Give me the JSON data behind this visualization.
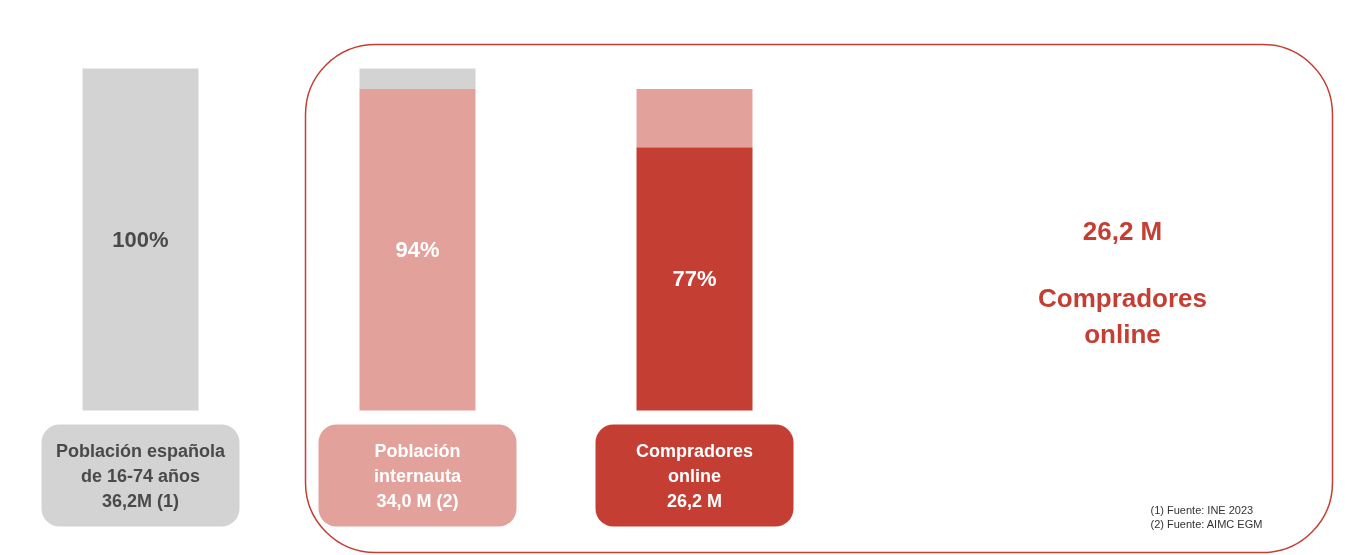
{
  "chart_data": {
    "type": "bar",
    "stacked": true,
    "categories": [
      "Población española\nde 16-74 años\n36,2M (1)",
      "Población\ninternauta\n34,0 M (2)",
      "Compradores\nonline\n26,2 M"
    ],
    "series": [
      {
        "colors": [
          "#d3d3d3",
          "#e3a19c",
          "#c53e33"
        ],
        "values": [
          100,
          94,
          77
        ],
        "value_labels": [
          "100%",
          "94%",
          "77%"
        ]
      },
      {
        "colors": [
          null,
          "#d3d3d3",
          "#e3a19c"
        ],
        "values": [
          null,
          6,
          17
        ]
      }
    ],
    "annotations": [
      "26,2 M",
      "Compradores\nonline",
      "(1) Fuente: INE 2023",
      "(2) Fuente: AIMC EGM"
    ]
  }
}
